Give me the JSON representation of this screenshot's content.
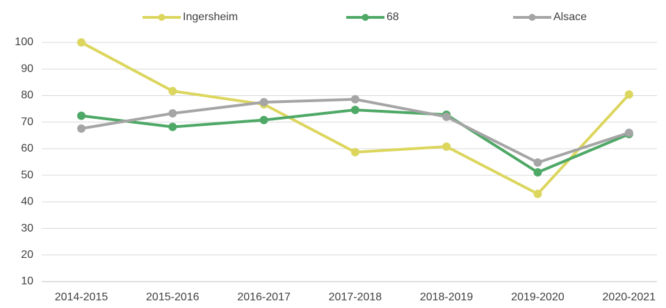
{
  "chart_data": {
    "type": "line",
    "categories": [
      "2014-2015",
      "2015-2016",
      "2016-2017",
      "2017-2018",
      "2018-2019",
      "2019-2020",
      "2020-2021"
    ],
    "series": [
      {
        "name": "Ingersheim",
        "color": "#dcd65e",
        "values": [
          100,
          81.7,
          76.7,
          58.7,
          60.8,
          43,
          80.4
        ]
      },
      {
        "name": "68",
        "color": "#4ea866",
        "values": [
          72.4,
          68.2,
          70.8,
          74.6,
          72.8,
          51.1,
          65.5
        ]
      },
      {
        "name": "Alsace",
        "color": "#a5a5a5",
        "values": [
          67.6,
          73.3,
          77.5,
          78.6,
          72,
          54.8,
          66
        ]
      }
    ],
    "ylim": [
      10,
      100
    ],
    "yticks": [
      10,
      20,
      30,
      40,
      50,
      60,
      70,
      80,
      90,
      100
    ],
    "grid": true,
    "legend": "top"
  }
}
